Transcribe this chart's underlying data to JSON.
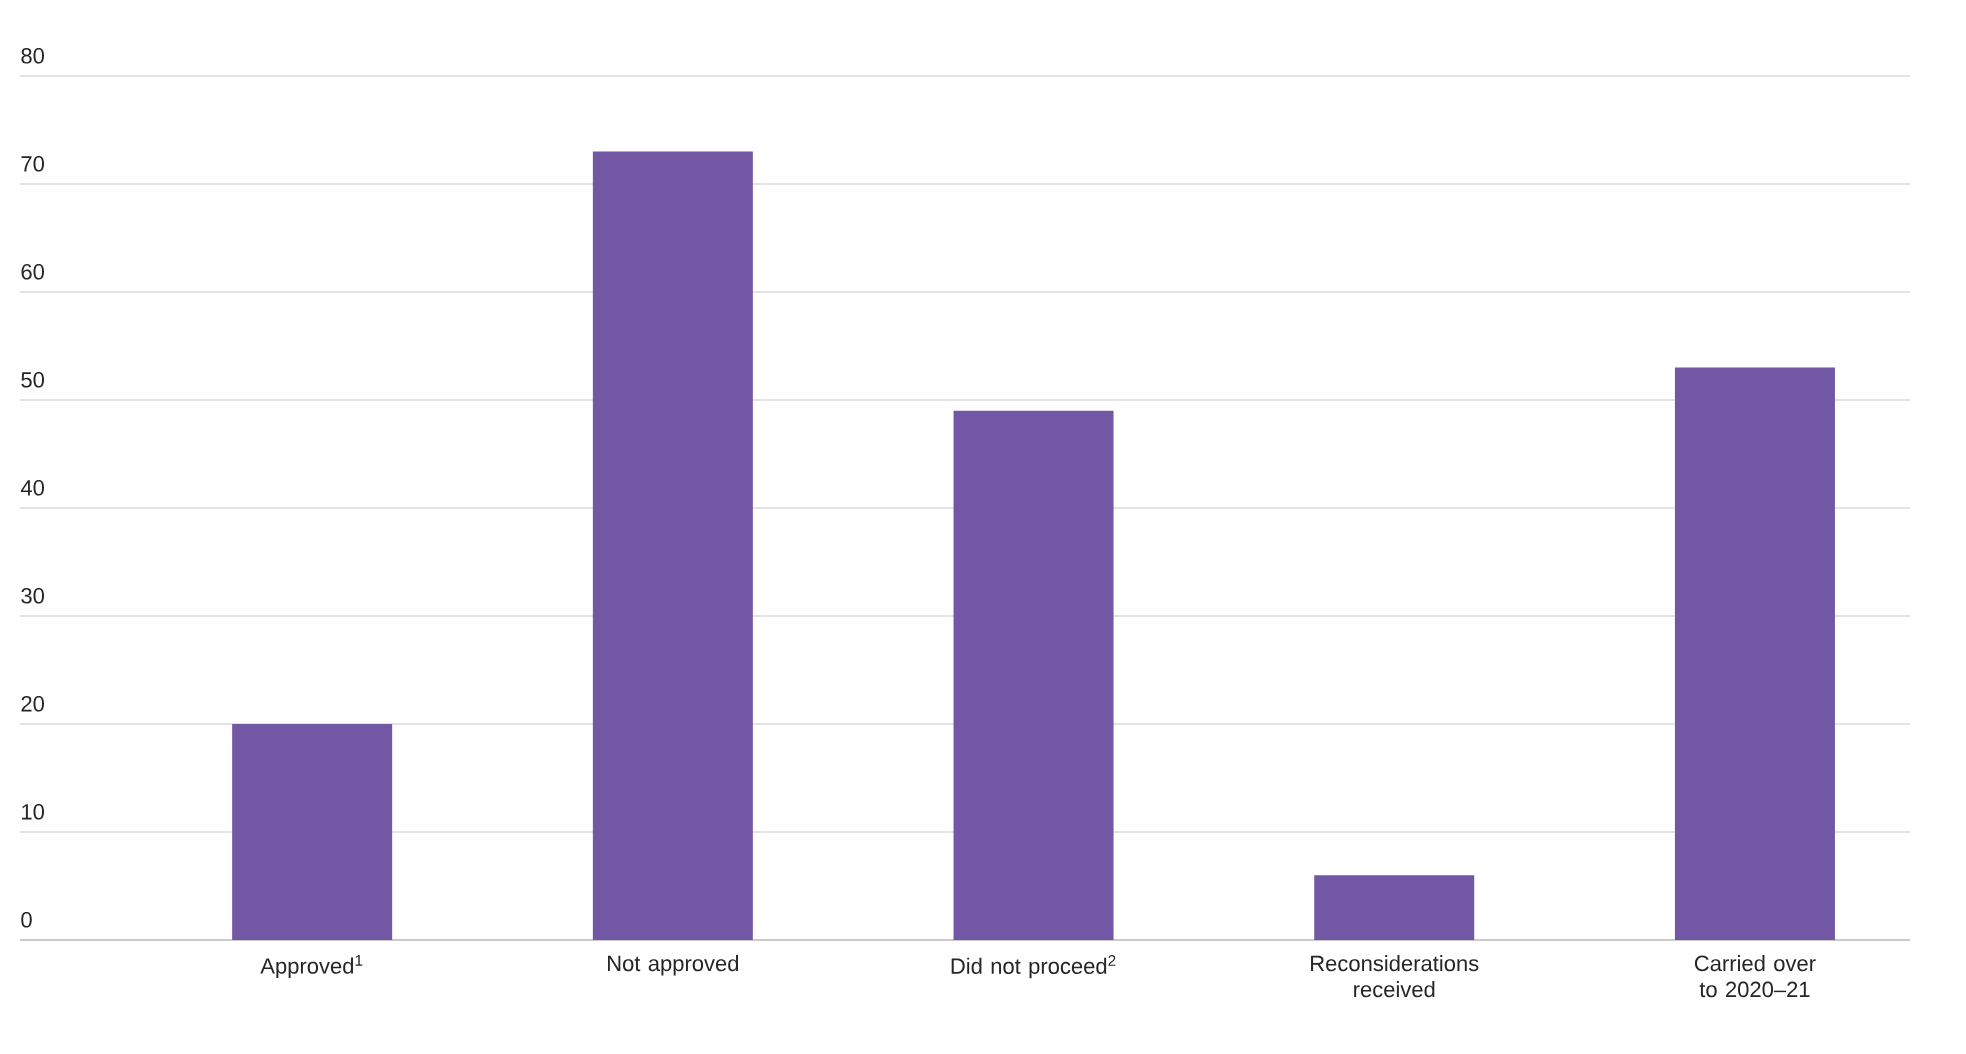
{
  "chart_data": {
    "type": "bar",
    "categories": [
      "Approved$^{1}$",
      "Not approved",
      "Did not proceed$^{2}$",
      "Reconsiderations received",
      "Carried over to 2020–21"
    ],
    "values": [
      20,
      73,
      49,
      6,
      53
    ],
    "color": "#7157a4",
    "ylim": [
      0,
      80
    ],
    "yticks": [
      0,
      10,
      20,
      30,
      40,
      50,
      60,
      70,
      80
    ],
    "grid": "y"
  }
}
